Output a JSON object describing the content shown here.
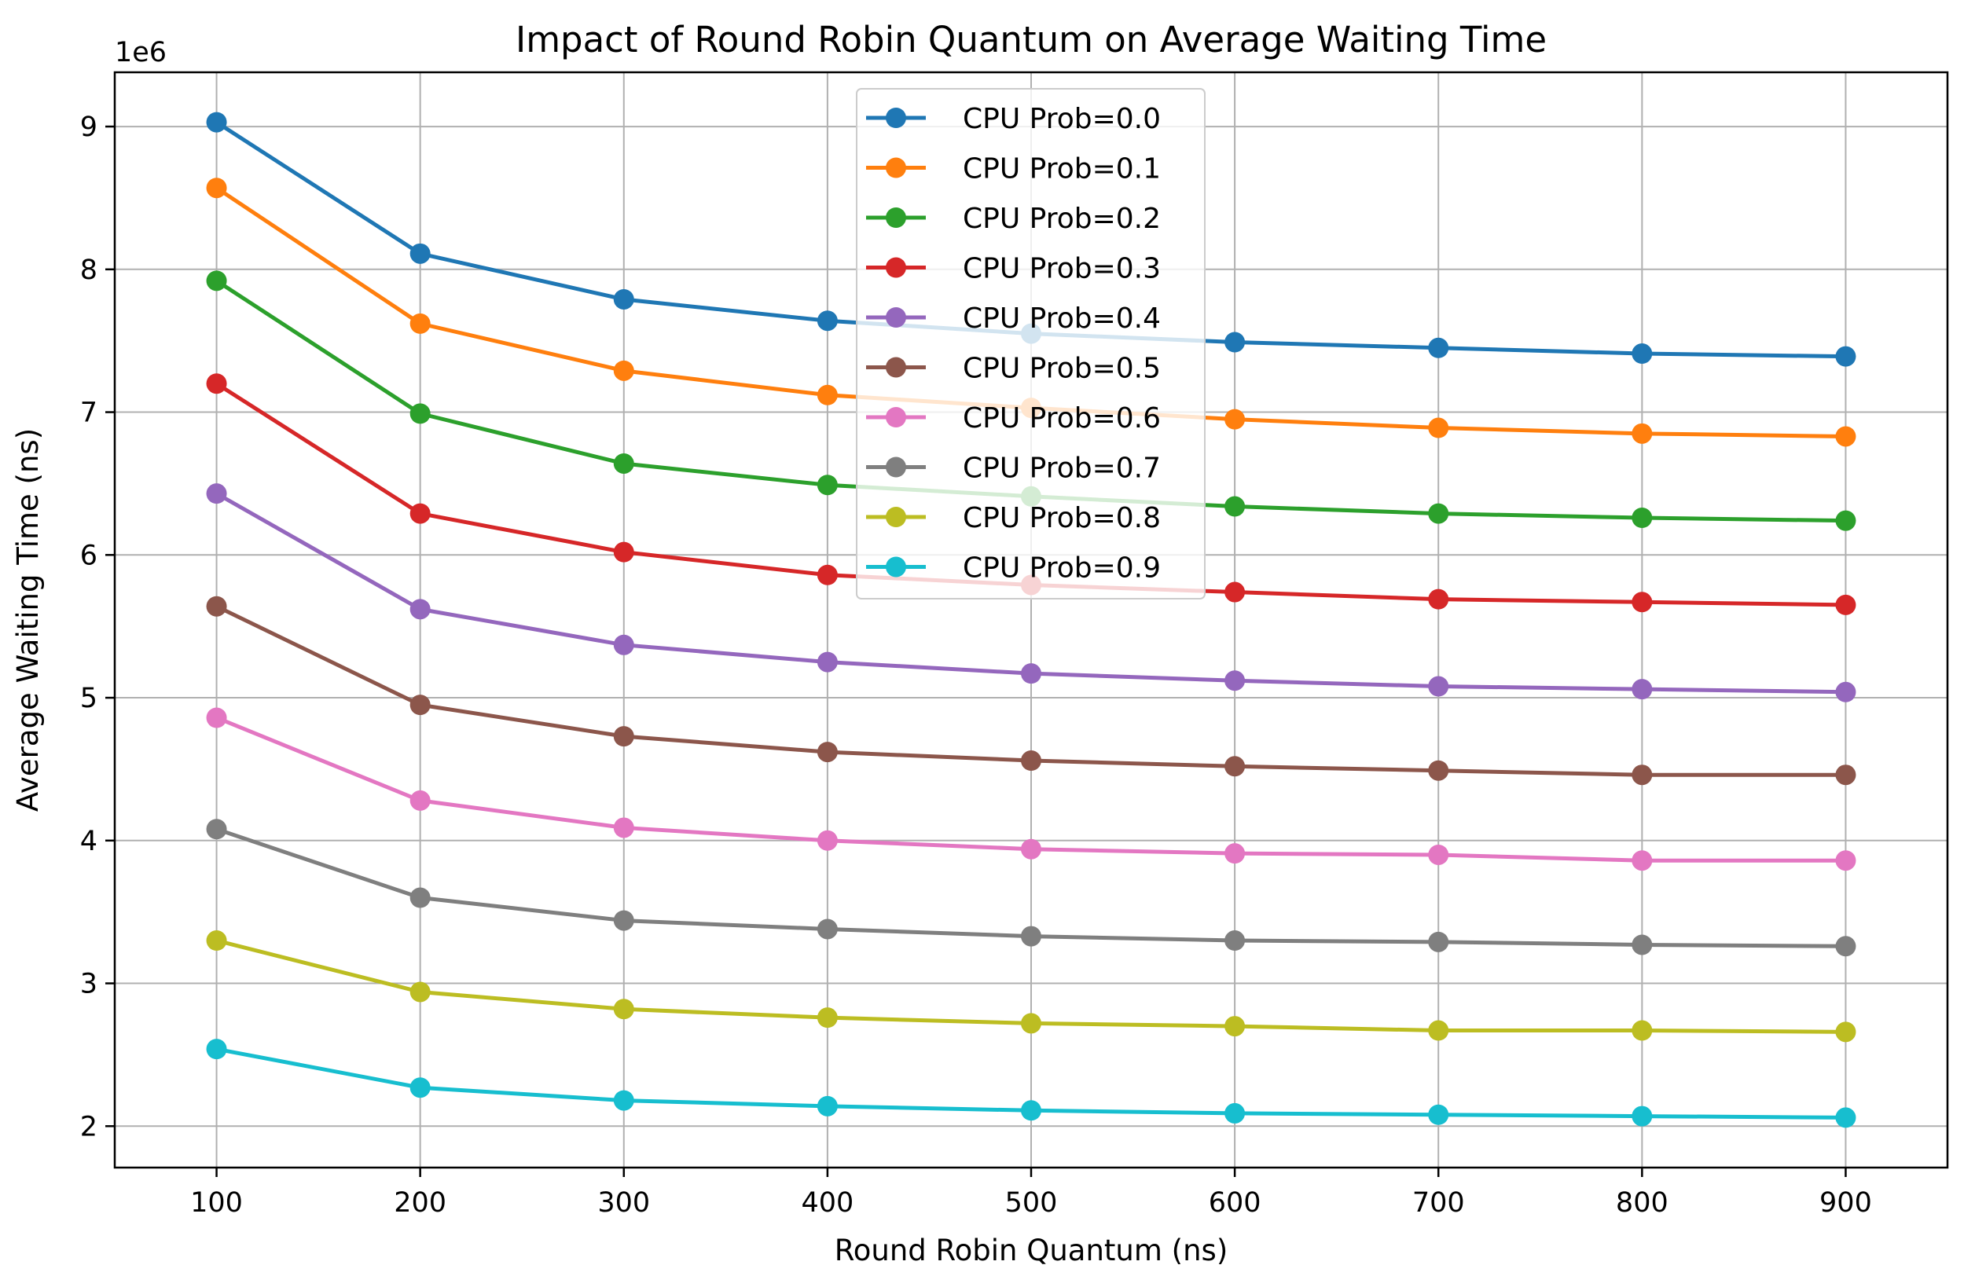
{
  "chart_data": {
    "type": "line",
    "title": "Impact of Round Robin Quantum on Average Waiting Time",
    "xlabel": "Round Robin Quantum (ns)",
    "ylabel": "Average Waiting Time (ns)",
    "y_offset_label": "1e6",
    "x": [
      100,
      200,
      300,
      400,
      500,
      600,
      700,
      800,
      900
    ],
    "xlim": [
      50,
      950
    ],
    "ylim": [
      1.71,
      9.38
    ],
    "y_scale_factor": 1000000,
    "x_ticks": [
      100,
      200,
      300,
      400,
      500,
      600,
      700,
      800,
      900
    ],
    "x_tick_labels": [
      "100",
      "200",
      "300",
      "400",
      "500",
      "600",
      "700",
      "800",
      "900"
    ],
    "y_ticks": [
      2,
      3,
      4,
      5,
      6,
      7,
      8,
      9
    ],
    "y_tick_labels": [
      "2",
      "3",
      "4",
      "5",
      "6",
      "7",
      "8",
      "9"
    ],
    "grid": true,
    "legend_position": "upper-center",
    "series": [
      {
        "name": "CPU Prob=0.0",
        "color": "#1f77b4",
        "values": [
          9.03,
          8.11,
          7.79,
          7.64,
          7.55,
          7.49,
          7.45,
          7.41,
          7.39
        ]
      },
      {
        "name": "CPU Prob=0.1",
        "color": "#ff7f0e",
        "values": [
          8.57,
          7.62,
          7.29,
          7.12,
          7.03,
          6.95,
          6.89,
          6.85,
          6.83
        ]
      },
      {
        "name": "CPU Prob=0.2",
        "color": "#2ca02c",
        "values": [
          7.92,
          6.99,
          6.64,
          6.49,
          6.41,
          6.34,
          6.29,
          6.26,
          6.24
        ]
      },
      {
        "name": "CPU Prob=0.3",
        "color": "#d62728",
        "values": [
          7.2,
          6.29,
          6.02,
          5.86,
          5.79,
          5.74,
          5.69,
          5.67,
          5.65
        ]
      },
      {
        "name": "CPU Prob=0.4",
        "color": "#9467bd",
        "values": [
          6.43,
          5.62,
          5.37,
          5.25,
          5.17,
          5.12,
          5.08,
          5.06,
          5.04
        ]
      },
      {
        "name": "CPU Prob=0.5",
        "color": "#8c564b",
        "values": [
          5.64,
          4.95,
          4.73,
          4.62,
          4.56,
          4.52,
          4.49,
          4.46,
          4.46
        ]
      },
      {
        "name": "CPU Prob=0.6",
        "color": "#e377c2",
        "values": [
          4.86,
          4.28,
          4.09,
          4.0,
          3.94,
          3.91,
          3.9,
          3.86,
          3.86
        ]
      },
      {
        "name": "CPU Prob=0.7",
        "color": "#7f7f7f",
        "values": [
          4.08,
          3.6,
          3.44,
          3.38,
          3.33,
          3.3,
          3.29,
          3.27,
          3.26
        ]
      },
      {
        "name": "CPU Prob=0.8",
        "color": "#bcbd22",
        "values": [
          3.3,
          2.94,
          2.82,
          2.76,
          2.72,
          2.7,
          2.67,
          2.67,
          2.66
        ]
      },
      {
        "name": "CPU Prob=0.9",
        "color": "#17becf",
        "values": [
          2.54,
          2.27,
          2.18,
          2.14,
          2.11,
          2.09,
          2.08,
          2.07,
          2.06
        ]
      }
    ]
  }
}
